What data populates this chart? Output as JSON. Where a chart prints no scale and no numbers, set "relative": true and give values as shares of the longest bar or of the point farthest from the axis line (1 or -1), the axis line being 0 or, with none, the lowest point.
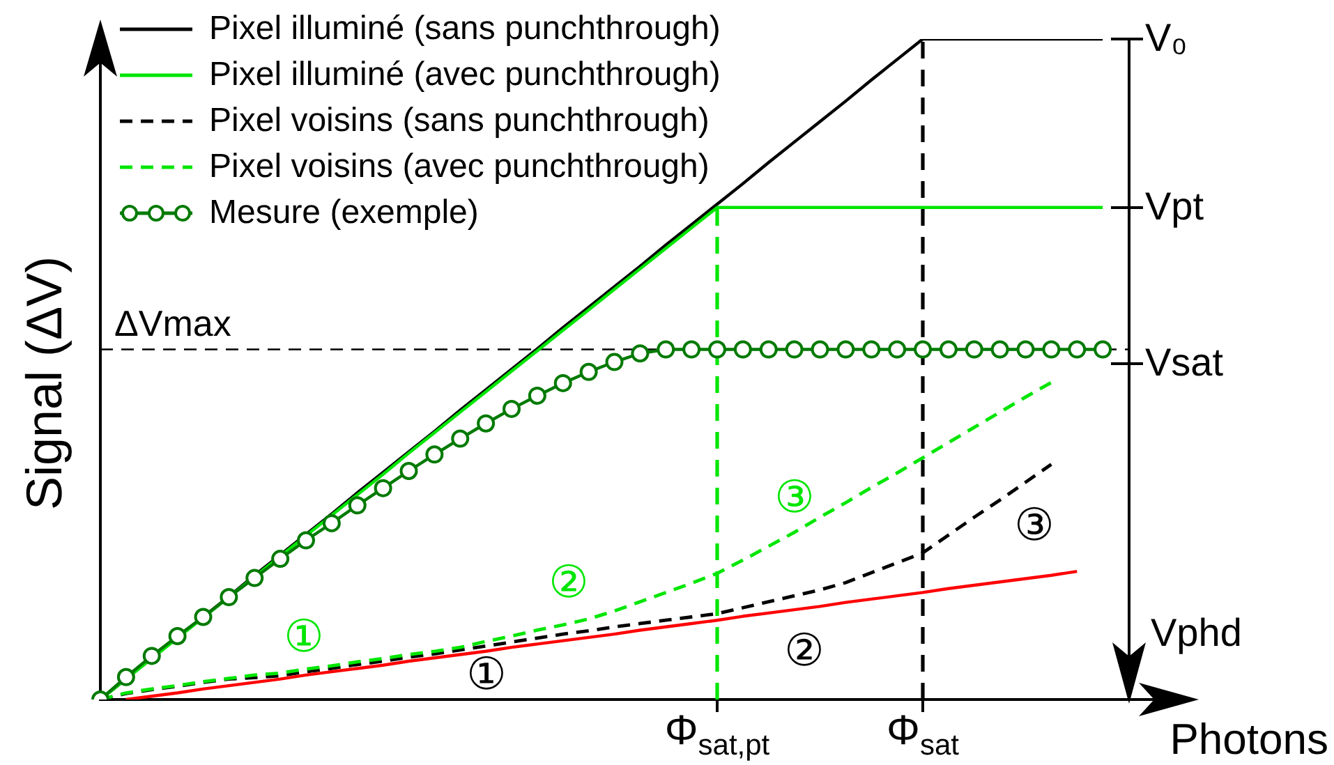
{
  "chart_data": {
    "type": "line",
    "xlabel": "Photons",
    "ylabel": "Signal (ΔV)",
    "relative": true,
    "categories": [
      null,
      null,
      null,
      null,
      null,
      null,
      null,
      null,
      null,
      null,
      null,
      null,
      null,
      null,
      null,
      null,
      null,
      null,
      null,
      null,
      null,
      null,
      null,
      null,
      "Φ$_{sat,pt}$",
      null,
      null,
      null,
      null,
      null,
      null,
      null,
      "Φ$_{sat}$",
      null,
      null,
      null,
      null,
      null,
      null,
      null,
      null
    ],
    "legend": "top left",
    "marker": "none",
    "line_style": "solid",
    "series": [
      {
        "name": "Pixel illuminé (sans punchthrough)",
        "color": "#000000",
        "values": [
          0,
          0.031,
          0.063,
          0.094,
          0.125,
          0.156,
          0.188,
          0.219,
          0.25,
          0.281,
          0.313,
          0.344,
          0.375,
          0.406,
          0.438,
          0.469,
          0.5,
          0.531,
          0.563,
          0.594,
          0.625,
          0.656,
          0.688,
          0.719,
          0.75,
          0.781,
          0.813,
          0.844,
          0.875,
          0.906,
          0.938,
          0.969,
          1,
          1,
          1,
          1,
          1,
          1,
          1,
          1,
          null
        ]
      },
      {
        "name": "Pixel illuminé (avec punchthrough)",
        "color": "#00e600",
        "values": [
          0,
          0.031,
          0.062,
          0.093,
          0.124,
          0.155,
          0.186,
          0.217,
          0.248,
          0.279,
          0.31,
          0.341,
          0.373,
          0.404,
          0.435,
          0.466,
          0.497,
          0.528,
          0.559,
          0.59,
          0.621,
          0.652,
          0.683,
          0.714,
          0.745,
          0.745,
          0.745,
          0.745,
          0.745,
          0.745,
          0.745,
          0.745,
          0.745,
          0.745,
          0.745,
          0.745,
          0.745,
          0.745,
          0.745,
          0.745,
          null
        ]
      },
      {
        "name": "Pixel voisins (sans punchthrough)",
        "color": "#000000",
        "line_style": "dashed",
        "values": [
          0,
          0.009,
          0.015,
          0.02,
          0.026,
          0.031,
          0.033,
          0.036,
          0.042,
          0.047,
          0.053,
          0.058,
          0.064,
          0.069,
          0.075,
          0.081,
          0.087,
          0.093,
          0.099,
          0.104,
          0.11,
          0.115,
          0.12,
          0.125,
          0.13,
          0.139,
          0.148,
          0.157,
          0.166,
          0.177,
          0.192,
          0.207,
          0.222,
          0.249,
          0.276,
          0.302,
          0.329,
          0.356,
          null,
          null,
          null
        ]
      },
      {
        "name": "Pixel voisins (avec punchthrough)",
        "color": "#00e600",
        "line_style": "dashed",
        "values": [
          0,
          0.01,
          0.016,
          0.021,
          0.027,
          0.032,
          0.037,
          0.04,
          0.046,
          0.051,
          0.057,
          0.062,
          0.068,
          0.073,
          0.079,
          0.088,
          0.096,
          0.105,
          0.113,
          0.122,
          0.134,
          0.148,
          0.162,
          0.176,
          0.191,
          0.211,
          0.232,
          0.253,
          0.276,
          0.298,
          0.321,
          0.343,
          0.366,
          0.389,
          0.412,
          0.435,
          0.458,
          0.48,
          null,
          null,
          null
        ]
      },
      {
        "color": "#ff0000",
        "values": [
          null,
          0,
          0.005,
          0.01,
          0.016,
          0.021,
          0.026,
          0.031,
          0.037,
          0.042,
          0.047,
          0.052,
          0.058,
          0.063,
          0.068,
          0.073,
          0.079,
          0.084,
          0.089,
          0.094,
          0.099,
          0.105,
          0.11,
          0.115,
          0.12,
          0.126,
          0.131,
          0.136,
          0.141,
          0.147,
          0.152,
          0.157,
          0.162,
          0.168,
          0.173,
          0.178,
          0.183,
          0.188,
          0.194,
          null,
          null
        ]
      },
      {
        "name": "Mesure (exemple)",
        "color": "#007a00",
        "marker": "circle",
        "values": [
          0,
          0.034,
          0.066,
          0.096,
          0.125,
          0.155,
          0.184,
          0.213,
          0.241,
          0.267,
          0.294,
          0.32,
          0.346,
          0.371,
          0.395,
          0.418,
          0.44,
          0.46,
          0.479,
          0.496,
          0.511,
          0.524,
          0.53,
          0.53,
          0.53,
          0.53,
          0.53,
          0.53,
          0.53,
          0.53,
          0.53,
          0.53,
          0.53,
          0.53,
          0.53,
          0.53,
          0.53,
          0.53,
          0.53,
          0.53,
          null
        ]
      }
    ],
    "ref_lines": [
      {
        "axis": "y",
        "value": 0.53,
        "label": "ΔVmax",
        "color": "#000000",
        "line_style": "dashed"
      },
      {
        "axis": "x",
        "value": "Φ$_{sat,pt}$",
        "color": "#00e600",
        "line_style": "dashed"
      },
      {
        "axis": "x",
        "value": "Φ$_{sat}$",
        "color": "#000000",
        "line_style": "dashed"
      }
    ],
    "annotations": [
      "①",
      "②",
      "③",
      "①",
      "②",
      "③",
      "V₀",
      "Vpt",
      "Vsat",
      "Vphd"
    ]
  }
}
